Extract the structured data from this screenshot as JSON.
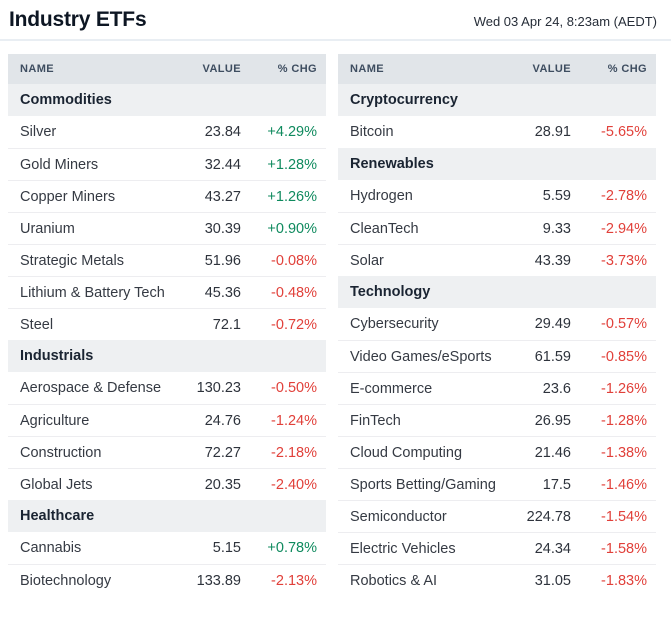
{
  "header": {
    "title": "Industry ETFs",
    "timestamp": "Wed 03 Apr 24, 8:23am (AEDT)"
  },
  "columns": {
    "name": "NAME",
    "value": "VALUE",
    "chg": "% CHG"
  },
  "colors": {
    "positive": "#0f8a5e",
    "negative": "#e1403a",
    "header_row_bg": "#e1e5e9",
    "section_row_bg": "#eef0f2",
    "title_text": "#0d1623"
  },
  "tables": {
    "left": {
      "rows": [
        {
          "type": "section",
          "name": "Commodities"
        },
        {
          "type": "data",
          "name": "Silver",
          "value": "23.84",
          "chg": "+4.29%"
        },
        {
          "type": "data",
          "name": "Gold Miners",
          "value": "32.44",
          "chg": "+1.28%"
        },
        {
          "type": "data",
          "name": "Copper Miners",
          "value": "43.27",
          "chg": "+1.26%"
        },
        {
          "type": "data",
          "name": "Uranium",
          "value": "30.39",
          "chg": "+0.90%"
        },
        {
          "type": "data",
          "name": "Strategic Metals",
          "value": "51.96",
          "chg": "-0.08%"
        },
        {
          "type": "data",
          "name": "Lithium & Battery Tech",
          "value": "45.36",
          "chg": "-0.48%"
        },
        {
          "type": "data",
          "name": "Steel",
          "value": "72.1",
          "chg": "-0.72%"
        },
        {
          "type": "section",
          "name": "Industrials"
        },
        {
          "type": "data",
          "name": "Aerospace & Defense",
          "value": "130.23",
          "chg": "-0.50%"
        },
        {
          "type": "data",
          "name": "Agriculture",
          "value": "24.76",
          "chg": "-1.24%"
        },
        {
          "type": "data",
          "name": "Construction",
          "value": "72.27",
          "chg": "-2.18%"
        },
        {
          "type": "data",
          "name": "Global Jets",
          "value": "20.35",
          "chg": "-2.40%"
        },
        {
          "type": "section",
          "name": "Healthcare"
        },
        {
          "type": "data",
          "name": "Cannabis",
          "value": "5.15",
          "chg": "+0.78%"
        },
        {
          "type": "data",
          "name": "Biotechnology",
          "value": "133.89",
          "chg": "-2.13%"
        }
      ]
    },
    "right": {
      "rows": [
        {
          "type": "section",
          "name": "Cryptocurrency"
        },
        {
          "type": "data",
          "name": "Bitcoin",
          "value": "28.91",
          "chg": "-5.65%"
        },
        {
          "type": "section",
          "name": "Renewables"
        },
        {
          "type": "data",
          "name": "Hydrogen",
          "value": "5.59",
          "chg": "-2.78%"
        },
        {
          "type": "data",
          "name": "CleanTech",
          "value": "9.33",
          "chg": "-2.94%"
        },
        {
          "type": "data",
          "name": "Solar",
          "value": "43.39",
          "chg": "-3.73%"
        },
        {
          "type": "section",
          "name": "Technology"
        },
        {
          "type": "data",
          "name": "Cybersecurity",
          "value": "29.49",
          "chg": "-0.57%"
        },
        {
          "type": "data",
          "name": "Video Games/eSports",
          "value": "61.59",
          "chg": "-0.85%"
        },
        {
          "type": "data",
          "name": "E-commerce",
          "value": "23.6",
          "chg": "-1.26%"
        },
        {
          "type": "data",
          "name": "FinTech",
          "value": "26.95",
          "chg": "-1.28%"
        },
        {
          "type": "data",
          "name": "Cloud Computing",
          "value": "21.46",
          "chg": "-1.38%"
        },
        {
          "type": "data",
          "name": "Sports Betting/Gaming",
          "value": "17.5",
          "chg": "-1.46%"
        },
        {
          "type": "data",
          "name": "Semiconductor",
          "value": "224.78",
          "chg": "-1.54%"
        },
        {
          "type": "data",
          "name": "Electric Vehicles",
          "value": "24.34",
          "chg": "-1.58%"
        },
        {
          "type": "data",
          "name": "Robotics & AI",
          "value": "31.05",
          "chg": "-1.83%"
        }
      ]
    }
  }
}
